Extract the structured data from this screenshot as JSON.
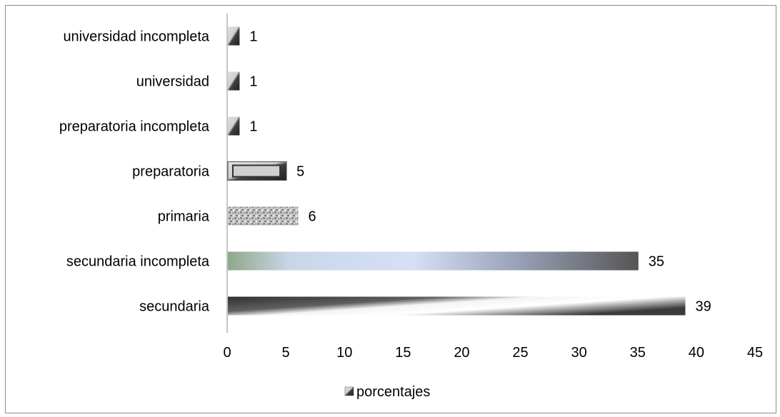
{
  "chart_data": {
    "type": "bar",
    "orientation": "horizontal",
    "categories": [
      "universidad incompleta",
      "universidad",
      "preparatoria incompleta",
      "preparatoria",
      "primaria",
      "secundaria incompleta",
      "secundaria"
    ],
    "series": [
      {
        "name": "porcentajes",
        "values": [
          1,
          1,
          1,
          5,
          6,
          35,
          39
        ]
      }
    ],
    "data_labels": [
      "1",
      "1",
      "1",
      "5",
      "6",
      "35",
      "39"
    ],
    "xlim": [
      0,
      45
    ],
    "x_ticks": [
      0,
      5,
      10,
      15,
      20,
      25,
      30,
      35,
      40,
      45
    ],
    "x_tick_labels": [
      "0",
      "5",
      "10",
      "15",
      "20",
      "25",
      "30",
      "35",
      "40",
      "45"
    ],
    "grid": false,
    "legend": {
      "position": "bottom",
      "entries": [
        "porcentajes"
      ]
    }
  }
}
